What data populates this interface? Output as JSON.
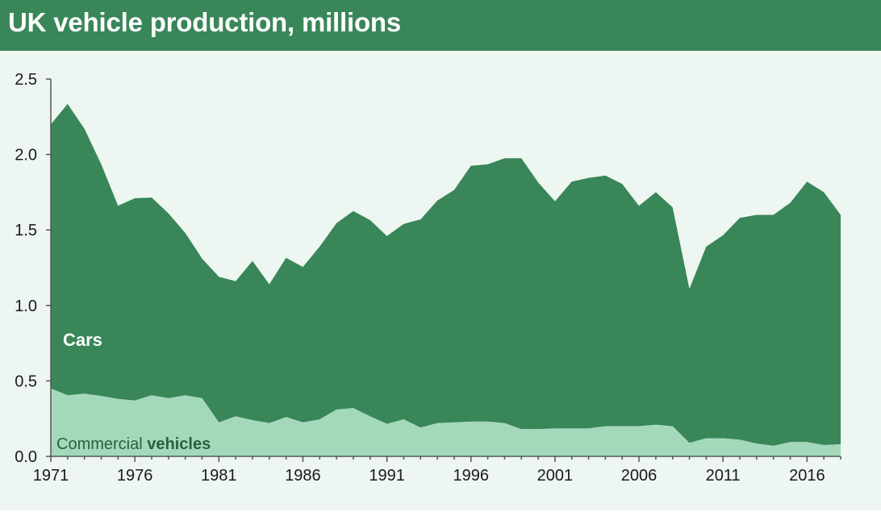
{
  "header": {
    "title": "UK vehicle production, millions"
  },
  "colors": {
    "title_bg": "#398659",
    "panel_bg": "#edf6f0",
    "cars": "#398659",
    "commercial": "#a4d8bb",
    "axis": "#555555"
  },
  "chart_data": {
    "type": "area",
    "title": "UK vehicle production, millions",
    "stacked": true,
    "x": [
      1971,
      1972,
      1973,
      1974,
      1975,
      1976,
      1977,
      1978,
      1979,
      1980,
      1981,
      1982,
      1983,
      1984,
      1985,
      1986,
      1987,
      1988,
      1989,
      1990,
      1991,
      1992,
      1993,
      1994,
      1995,
      1996,
      1997,
      1998,
      1999,
      2000,
      2001,
      2002,
      2003,
      2004,
      2005,
      2006,
      2007,
      2008,
      2009,
      2010,
      2011,
      2012,
      2013,
      2014,
      2015,
      2016,
      2017,
      2018
    ],
    "series": [
      {
        "name": "Commercial vehicles",
        "values": [
          0.45,
          0.405,
          0.415,
          0.4,
          0.38,
          0.37,
          0.405,
          0.385,
          0.405,
          0.385,
          0.225,
          0.265,
          0.24,
          0.22,
          0.26,
          0.225,
          0.245,
          0.31,
          0.32,
          0.265,
          0.215,
          0.245,
          0.19,
          0.22,
          0.225,
          0.23,
          0.23,
          0.22,
          0.18,
          0.18,
          0.185,
          0.185,
          0.185,
          0.2,
          0.2,
          0.2,
          0.21,
          0.2,
          0.09,
          0.12,
          0.12,
          0.11,
          0.085,
          0.07,
          0.095,
          0.095,
          0.075,
          0.08
        ]
      },
      {
        "name": "Cars",
        "values": [
          1.75,
          1.93,
          1.755,
          1.535,
          1.28,
          1.34,
          1.31,
          1.225,
          1.075,
          0.925,
          0.965,
          0.895,
          1.055,
          0.92,
          1.055,
          1.03,
          1.145,
          1.235,
          1.305,
          1.3,
          1.245,
          1.295,
          1.38,
          1.475,
          1.54,
          1.695,
          1.705,
          1.755,
          1.795,
          1.635,
          1.505,
          1.635,
          1.66,
          1.66,
          1.605,
          1.46,
          1.54,
          1.45,
          1.02,
          1.27,
          1.345,
          1.47,
          1.515,
          1.53,
          1.585,
          1.725,
          1.675,
          1.52
        ]
      }
    ],
    "series_labels": {
      "cars": "Cars",
      "commercial_part1": "Commercial ",
      "commercial_part2": "vehicles"
    },
    "xticks": [
      "1971",
      "1976",
      "1981",
      "1986",
      "1991",
      "1996",
      "2001",
      "2006",
      "2011",
      "2016"
    ],
    "yticks": [
      "0.0",
      "0.5",
      "1.0",
      "1.5",
      "2.0",
      "2.5"
    ],
    "ylim": [
      0,
      2.5
    ],
    "xlim": [
      1971,
      2018
    ],
    "grid": false,
    "legend": "inline labels"
  }
}
